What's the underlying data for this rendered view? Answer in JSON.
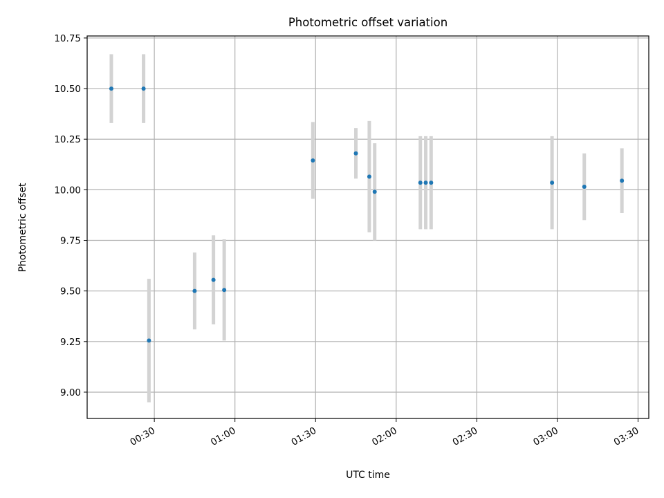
{
  "chart_data": {
    "type": "scatter",
    "title": "Photometric offset variation",
    "xlabel": "UTC time",
    "ylabel": "Photometric offset",
    "x_unit": "HH:MM UTC",
    "xlim": [
      "00:05",
      "03:34"
    ],
    "ylim": [
      8.87,
      10.76
    ],
    "grid": true,
    "x_ticks": [
      "00:30",
      "01:00",
      "01:30",
      "02:00",
      "02:30",
      "03:00",
      "03:30"
    ],
    "y_ticks": [
      "9.00",
      "9.25",
      "9.50",
      "9.75",
      "10.00",
      "10.25",
      "10.50",
      "10.75"
    ],
    "colors": {
      "point": "#1f77b4",
      "errorbar": "#d3d3d3",
      "grid": "#b0b0b0"
    },
    "points": [
      {
        "x": "00:14",
        "y": 10.5,
        "yerr": 0.17
      },
      {
        "x": "00:26",
        "y": 10.5,
        "yerr": 0.17
      },
      {
        "x": "00:28",
        "y": 9.255,
        "yerr": 0.305
      },
      {
        "x": "00:45",
        "y": 9.5,
        "yerr": 0.19
      },
      {
        "x": "00:52",
        "y": 9.555,
        "yerr": 0.22
      },
      {
        "x": "00:56",
        "y": 9.505,
        "yerr": 0.25
      },
      {
        "x": "01:29",
        "y": 10.145,
        "yerr": 0.19
      },
      {
        "x": "01:45",
        "y": 10.18,
        "yerr": 0.125
      },
      {
        "x": "01:50",
        "y": 10.065,
        "yerr": 0.275
      },
      {
        "x": "01:52",
        "y": 9.99,
        "yerr": 0.24
      },
      {
        "x": "02:09",
        "y": 10.035,
        "yerr": 0.23
      },
      {
        "x": "02:11",
        "y": 10.035,
        "yerr": 0.23
      },
      {
        "x": "02:13",
        "y": 10.035,
        "yerr": 0.23
      },
      {
        "x": "02:58",
        "y": 10.035,
        "yerr": 0.23
      },
      {
        "x": "03:10",
        "y": 10.015,
        "yerr": 0.165
      },
      {
        "x": "03:24",
        "y": 10.045,
        "yerr": 0.16
      }
    ]
  }
}
